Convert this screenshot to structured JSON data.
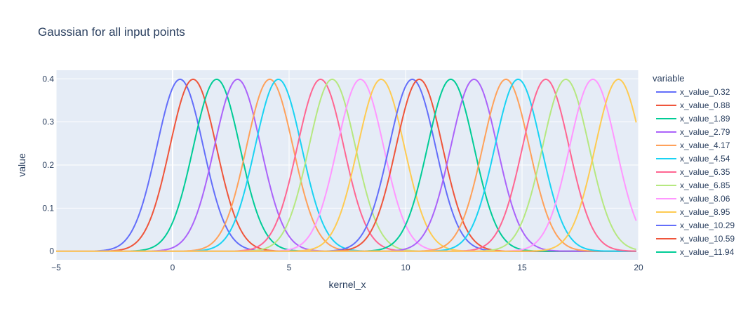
{
  "chart_data": {
    "type": "line",
    "title": "Gaussian for all input points",
    "xlabel": "kernel_x",
    "ylabel": "value",
    "xlim": [
      -5,
      20
    ],
    "ylim": [
      -0.02,
      0.42
    ],
    "x_ticks": [
      -5,
      0,
      5,
      10,
      15,
      20
    ],
    "y_ticks": [
      0,
      0.1,
      0.2,
      0.3,
      0.4
    ],
    "x_tick_labels": [
      "−5",
      "0",
      "5",
      "10",
      "15",
      "20"
    ],
    "y_tick_labels": [
      "0",
      "0.1",
      "0.2",
      "0.3",
      "0.4"
    ],
    "grid": true,
    "plot_background": "#E5ECF6",
    "legend_title": "variable",
    "legend_placement": "right",
    "curve": "normal_pdf",
    "sigma": 1,
    "x_range_sampled": [
      -5,
      19.9
    ],
    "series": [
      {
        "name": "x_value_0.32",
        "mean": 0.32,
        "color": "#636efa"
      },
      {
        "name": "x_value_0.88",
        "mean": 0.88,
        "color": "#EF553B"
      },
      {
        "name": "x_value_1.89",
        "mean": 1.89,
        "color": "#00cc96"
      },
      {
        "name": "x_value_2.79",
        "mean": 2.79,
        "color": "#ab63fa"
      },
      {
        "name": "x_value_4.17",
        "mean": 4.17,
        "color": "#FFA15A"
      },
      {
        "name": "x_value_4.54",
        "mean": 4.54,
        "color": "#19d3f3"
      },
      {
        "name": "x_value_6.35",
        "mean": 6.35,
        "color": "#FF6692"
      },
      {
        "name": "x_value_6.85",
        "mean": 6.85,
        "color": "#B6E880"
      },
      {
        "name": "x_value_8.06",
        "mean": 8.06,
        "color": "#FF97FF"
      },
      {
        "name": "x_value_8.95",
        "mean": 8.95,
        "color": "#FECB52"
      },
      {
        "name": "x_value_10.29",
        "mean": 10.29,
        "color": "#636efa"
      },
      {
        "name": "x_value_10.59",
        "mean": 10.59,
        "color": "#EF553B"
      },
      {
        "name": "x_value_11.94",
        "mean": 11.94,
        "color": "#00cc96"
      },
      {
        "mean": 12.94,
        "color": "#ab63fa"
      },
      {
        "mean": 14.31,
        "color": "#FFA15A"
      },
      {
        "mean": 14.83,
        "color": "#19d3f3"
      },
      {
        "mean": 16.02,
        "color": "#FF6692"
      },
      {
        "mean": 16.88,
        "color": "#B6E880"
      },
      {
        "mean": 18.04,
        "color": "#FF97FF"
      },
      {
        "mean": 19.14,
        "color": "#FECB52"
      }
    ]
  }
}
